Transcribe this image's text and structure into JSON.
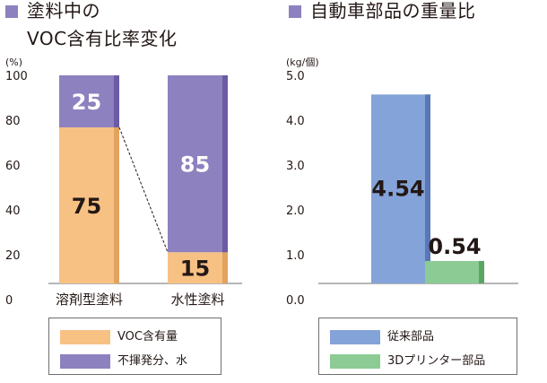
{
  "colors": {
    "marker": "#8e81bf",
    "voc_fill": "#f7c184",
    "voc_edge": "#e3a35e",
    "water_fill": "#8e81bf",
    "water_edge": "#6c5ba4",
    "conventional_fill": "#84a3d8",
    "conventional_edge": "#5a77b7",
    "printed_fill": "#8ccb93",
    "printed_edge": "#5ba564",
    "axis": "#6e6e6e"
  },
  "left_panel": {
    "title_line1": "塗料中の",
    "title_line2": "VOC含有比率変化",
    "legend": [
      {
        "label": "VOC含有量",
        "color": "#f7c184"
      },
      {
        "label": "不揮発分、水",
        "color": "#8e81bf"
      }
    ]
  },
  "right_panel": {
    "title": "自動車部品の重量比",
    "legend": [
      {
        "label": "従来部品",
        "color": "#84a3d8"
      },
      {
        "label": "3Dプリンター部品",
        "color": "#8ccb93"
      }
    ]
  },
  "chart_data": [
    {
      "type": "bar",
      "stacked": true,
      "title": "塗料中のVOC含有比率変化",
      "unit_label": "(%)",
      "categories": [
        "溶剤型塗料",
        "水性塗料"
      ],
      "series": [
        {
          "name": "VOC含有量",
          "values": [
            75,
            15
          ]
        },
        {
          "name": "不揮発分、水",
          "values": [
            25,
            85
          ]
        }
      ],
      "yticks": [
        0,
        20,
        40,
        60,
        80,
        100
      ],
      "ylim": [
        0,
        100
      ],
      "annotations": [
        "dashed connector between VOC segment tops"
      ],
      "legend_position": "bottom"
    },
    {
      "type": "bar",
      "title": "自動車部品の重量比",
      "unit_label": "(kg/個)",
      "categories": [
        "従来部品",
        "3Dプリンター部品"
      ],
      "values": [
        4.54,
        0.54
      ],
      "value_labels": [
        "4.54",
        "0.54"
      ],
      "yticks": [
        "0.0",
        "1.0",
        "2.0",
        "3.0",
        "4.0",
        "5.0"
      ],
      "ylim": [
        0,
        5
      ],
      "legend_position": "bottom"
    }
  ]
}
